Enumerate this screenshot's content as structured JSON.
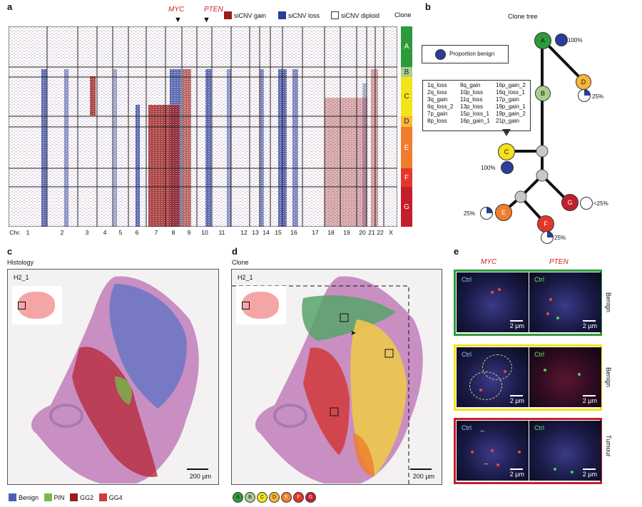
{
  "panels": {
    "a": "a",
    "b": "b",
    "c": "c",
    "d": "d",
    "e": "e"
  },
  "panel_a": {
    "genes": [
      "MYC",
      "PTEN"
    ],
    "legend": [
      "siCNV gain",
      "siCNV loss",
      "siCNV diploid"
    ],
    "clone_header": "Clone",
    "chr_prefix": "Chr.",
    "chromosomes": [
      "1",
      "2",
      "3",
      "4",
      "5",
      "6",
      "7",
      "8",
      "9",
      "10",
      "11",
      "12",
      "13",
      "14",
      "15",
      "16",
      "17",
      "18",
      "19",
      "20",
      "21",
      "22",
      "X"
    ],
    "clones": [
      "A",
      "B",
      "C",
      "D",
      "E",
      "F",
      "G"
    ],
    "colors": {
      "gain": "#9a1b1b",
      "loss": "#2a3d9a",
      "A": "#2e9a3c",
      "B": "#a9cf8d",
      "C": "#f3e21c",
      "D": "#f7b53a",
      "E": "#f07d2b",
      "F": "#e2382a",
      "G": "#c41e2d"
    }
  },
  "panel_b": {
    "title": "Clone tree",
    "legend_label": "Proportion benign",
    "nodes": [
      "A",
      "B",
      "C",
      "D",
      "E",
      "F",
      "G"
    ],
    "percents": {
      "A": "100%",
      "D": "25%",
      "C": "100%",
      "E": "25%",
      "F": "25%",
      "G": "<25%"
    },
    "events_col1": [
      "1q_loss",
      "2q_loss",
      "3q_gain",
      "6q_loss_2",
      "7p_gain",
      "8p_loss"
    ],
    "events_col2": [
      "8q_gain",
      "10p_loss",
      "11q_loss",
      "13p_loss",
      "15p_loss_1",
      "16p_gain_1"
    ],
    "events_col3": [
      "16p_gain_2",
      "16q_loss_1",
      "17p_gain",
      "19p_gain_1",
      "19p_gain_2",
      "21p_gain"
    ]
  },
  "panel_c": {
    "title": "Histology",
    "sample": "H2_1",
    "scale": "200 µm",
    "legend": [
      "Benign",
      "PIN",
      "GG2",
      "GG4"
    ],
    "legend_colors": [
      "#4a5fb5",
      "#78b94a",
      "#9a1b1b",
      "#d23a3a"
    ]
  },
  "panel_d": {
    "title": "Clone",
    "sample": "H2_1",
    "scale": "200 µm",
    "legend": [
      "A",
      "B",
      "C",
      "D",
      "E",
      "F",
      "G"
    ]
  },
  "panel_e": {
    "genes": [
      "MYC",
      "PTEN"
    ],
    "rows": [
      "Benign",
      "Benign",
      "Tumour"
    ],
    "ctrl": "Ctrl",
    "scale": "2 µm",
    "row_colors": [
      "#2e9a3c",
      "#f3e21c",
      "#c41e2d"
    ]
  }
}
